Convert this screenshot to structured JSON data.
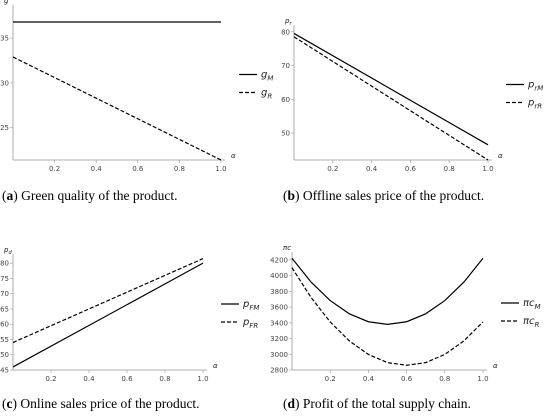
{
  "chart_data": [
    {
      "type": "line",
      "ylabel": "g",
      "xlabel": "α",
      "legend": "right",
      "x": [
        0,
        1
      ],
      "series": [
        {
          "name": "g",
          "sub": "M",
          "color": "#000000",
          "style": "solid",
          "values": [
            36.8,
            36.8
          ]
        },
        {
          "name": "g",
          "sub": "R",
          "color": "#000000",
          "style": "dashed",
          "values": [
            32.9,
            21.4
          ]
        }
      ],
      "xlim": [
        0,
        1
      ],
      "xticks": [
        0.2,
        0.4,
        0.6,
        0.8,
        {
          "value": 1,
          "label": "1.0"
        }
      ],
      "ylim": [
        21.4,
        38.7
      ],
      "yticks": [
        25,
        30,
        35
      ],
      "caption": {
        "open": "(",
        "label": "a",
        "text": ") Green quality of the product."
      }
    },
    {
      "type": "line",
      "ylabel": "p",
      "ysub": "r",
      "xlabel": "α",
      "legend": "right",
      "x": [
        0,
        1
      ],
      "series": [
        {
          "name": "p",
          "sub": "rM",
          "color": "#000000",
          "style": "solid",
          "values": [
            79.5,
            46.5
          ]
        },
        {
          "name": "p",
          "sub": "rR",
          "color": "#000000",
          "style": "dashed",
          "values": [
            78.5,
            42
          ]
        }
      ],
      "xlim": [
        0,
        1
      ],
      "xticks": [
        0.2,
        0.4,
        0.6,
        0.8,
        {
          "value": 1,
          "label": "1.0"
        }
      ],
      "ylim": [
        42,
        82
      ],
      "yticks": [
        50,
        60,
        70,
        80
      ],
      "caption": {
        "open": "(",
        "label": "b",
        "text": ") Offline sales price of the product."
      }
    },
    {
      "type": "line",
      "ylabel": "p",
      "ysub": "d",
      "xlabel": "α",
      "legend": "right",
      "x": [
        0,
        1
      ],
      "series": [
        {
          "name": "p",
          "sub": "FM",
          "color": "#000000",
          "style": "solid",
          "values": [
            46,
            80
          ]
        },
        {
          "name": "p",
          "sub": "FR",
          "color": "#000000",
          "style": "dashed",
          "values": [
            54,
            81.5
          ]
        }
      ],
      "xlim": [
        0,
        1
      ],
      "xticks": [
        0.2,
        0.4,
        0.6,
        0.8,
        {
          "value": 1,
          "label": "1.0"
        }
      ],
      "ylim": [
        45,
        83
      ],
      "yticks": [
        45,
        50,
        55,
        60,
        65,
        70,
        75,
        80
      ],
      "caption": {
        "open": "(",
        "label": "c",
        "text": ") Online sales price of the product."
      }
    },
    {
      "type": "line",
      "ylabel": "πc",
      "xlabel": "α",
      "legend": "right",
      "x": [
        0,
        0.1,
        0.2,
        0.3,
        0.4,
        0.5,
        0.6,
        0.7,
        0.8,
        0.9,
        1
      ],
      "series": [
        {
          "name": "πc",
          "sub": "M",
          "color": "#000000",
          "style": "solid",
          "values": [
            4220,
            3917.6,
            3682.4,
            3514.4,
            3413.6,
            3380,
            3413.6,
            3514.4,
            3682.4,
            3917.6,
            4220
          ]
        },
        {
          "name": "πc",
          "sub": "R",
          "color": "#000000",
          "style": "dashed",
          "values": [
            4100,
            3721,
            3411,
            3170,
            2998,
            2894,
            2860,
            2894,
            2998,
            3170,
            3411
          ]
        }
      ],
      "xlim": [
        0,
        1
      ],
      "xticks": [
        0.2,
        0.4,
        0.6,
        0.8,
        {
          "value": 1,
          "label": "1.0"
        }
      ],
      "ylim": [
        2800,
        4300
      ],
      "yticks": [
        2800,
        3000,
        3200,
        3400,
        3600,
        3800,
        4000,
        4200
      ],
      "caption": {
        "open": "(",
        "label": "d",
        "text": ") Profit of the total supply chain."
      }
    }
  ]
}
